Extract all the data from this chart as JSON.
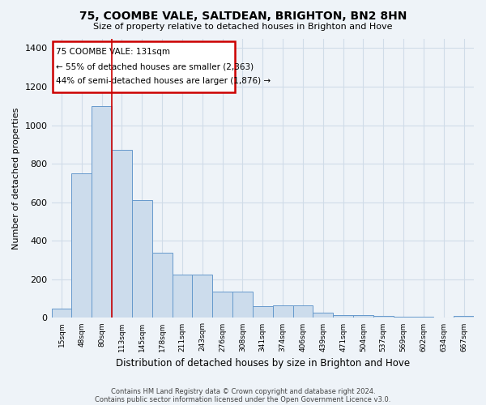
{
  "title": "75, COOMBE VALE, SALTDEAN, BRIGHTON, BN2 8HN",
  "subtitle": "Size of property relative to detached houses in Brighton and Hove",
  "xlabel": "Distribution of detached houses by size in Brighton and Hove",
  "ylabel": "Number of detached properties",
  "categories": [
    "15sqm",
    "48sqm",
    "80sqm",
    "113sqm",
    "145sqm",
    "178sqm",
    "211sqm",
    "243sqm",
    "276sqm",
    "308sqm",
    "341sqm",
    "374sqm",
    "406sqm",
    "439sqm",
    "471sqm",
    "504sqm",
    "537sqm",
    "569sqm",
    "602sqm",
    "634sqm",
    "667sqm"
  ],
  "bar_values": [
    50,
    750,
    1100,
    870,
    610,
    340,
    225,
    225,
    135,
    135,
    60,
    65,
    65,
    25,
    15,
    15,
    10,
    5,
    5,
    1,
    10
  ],
  "property_line_x": 2.5,
  "annotation_title": "75 COOMBE VALE: 131sqm",
  "annotation_line1": "← 55% of detached houses are smaller (2,363)",
  "annotation_line2": "44% of semi-detached houses are larger (1,876) →",
  "bar_color": "#ccdcec",
  "bar_edge_color": "#6699cc",
  "grid_color": "#d0dce8",
  "background_color": "#eef3f8",
  "plot_bg_color": "#eef3f8",
  "vline_color": "#cc0000",
  "ylim": [
    0,
    1450
  ],
  "yticks": [
    0,
    200,
    400,
    600,
    800,
    1000,
    1200,
    1400
  ],
  "footer1": "Contains HM Land Registry data © Crown copyright and database right 2024.",
  "footer2": "Contains public sector information licensed under the Open Government Licence v3.0."
}
